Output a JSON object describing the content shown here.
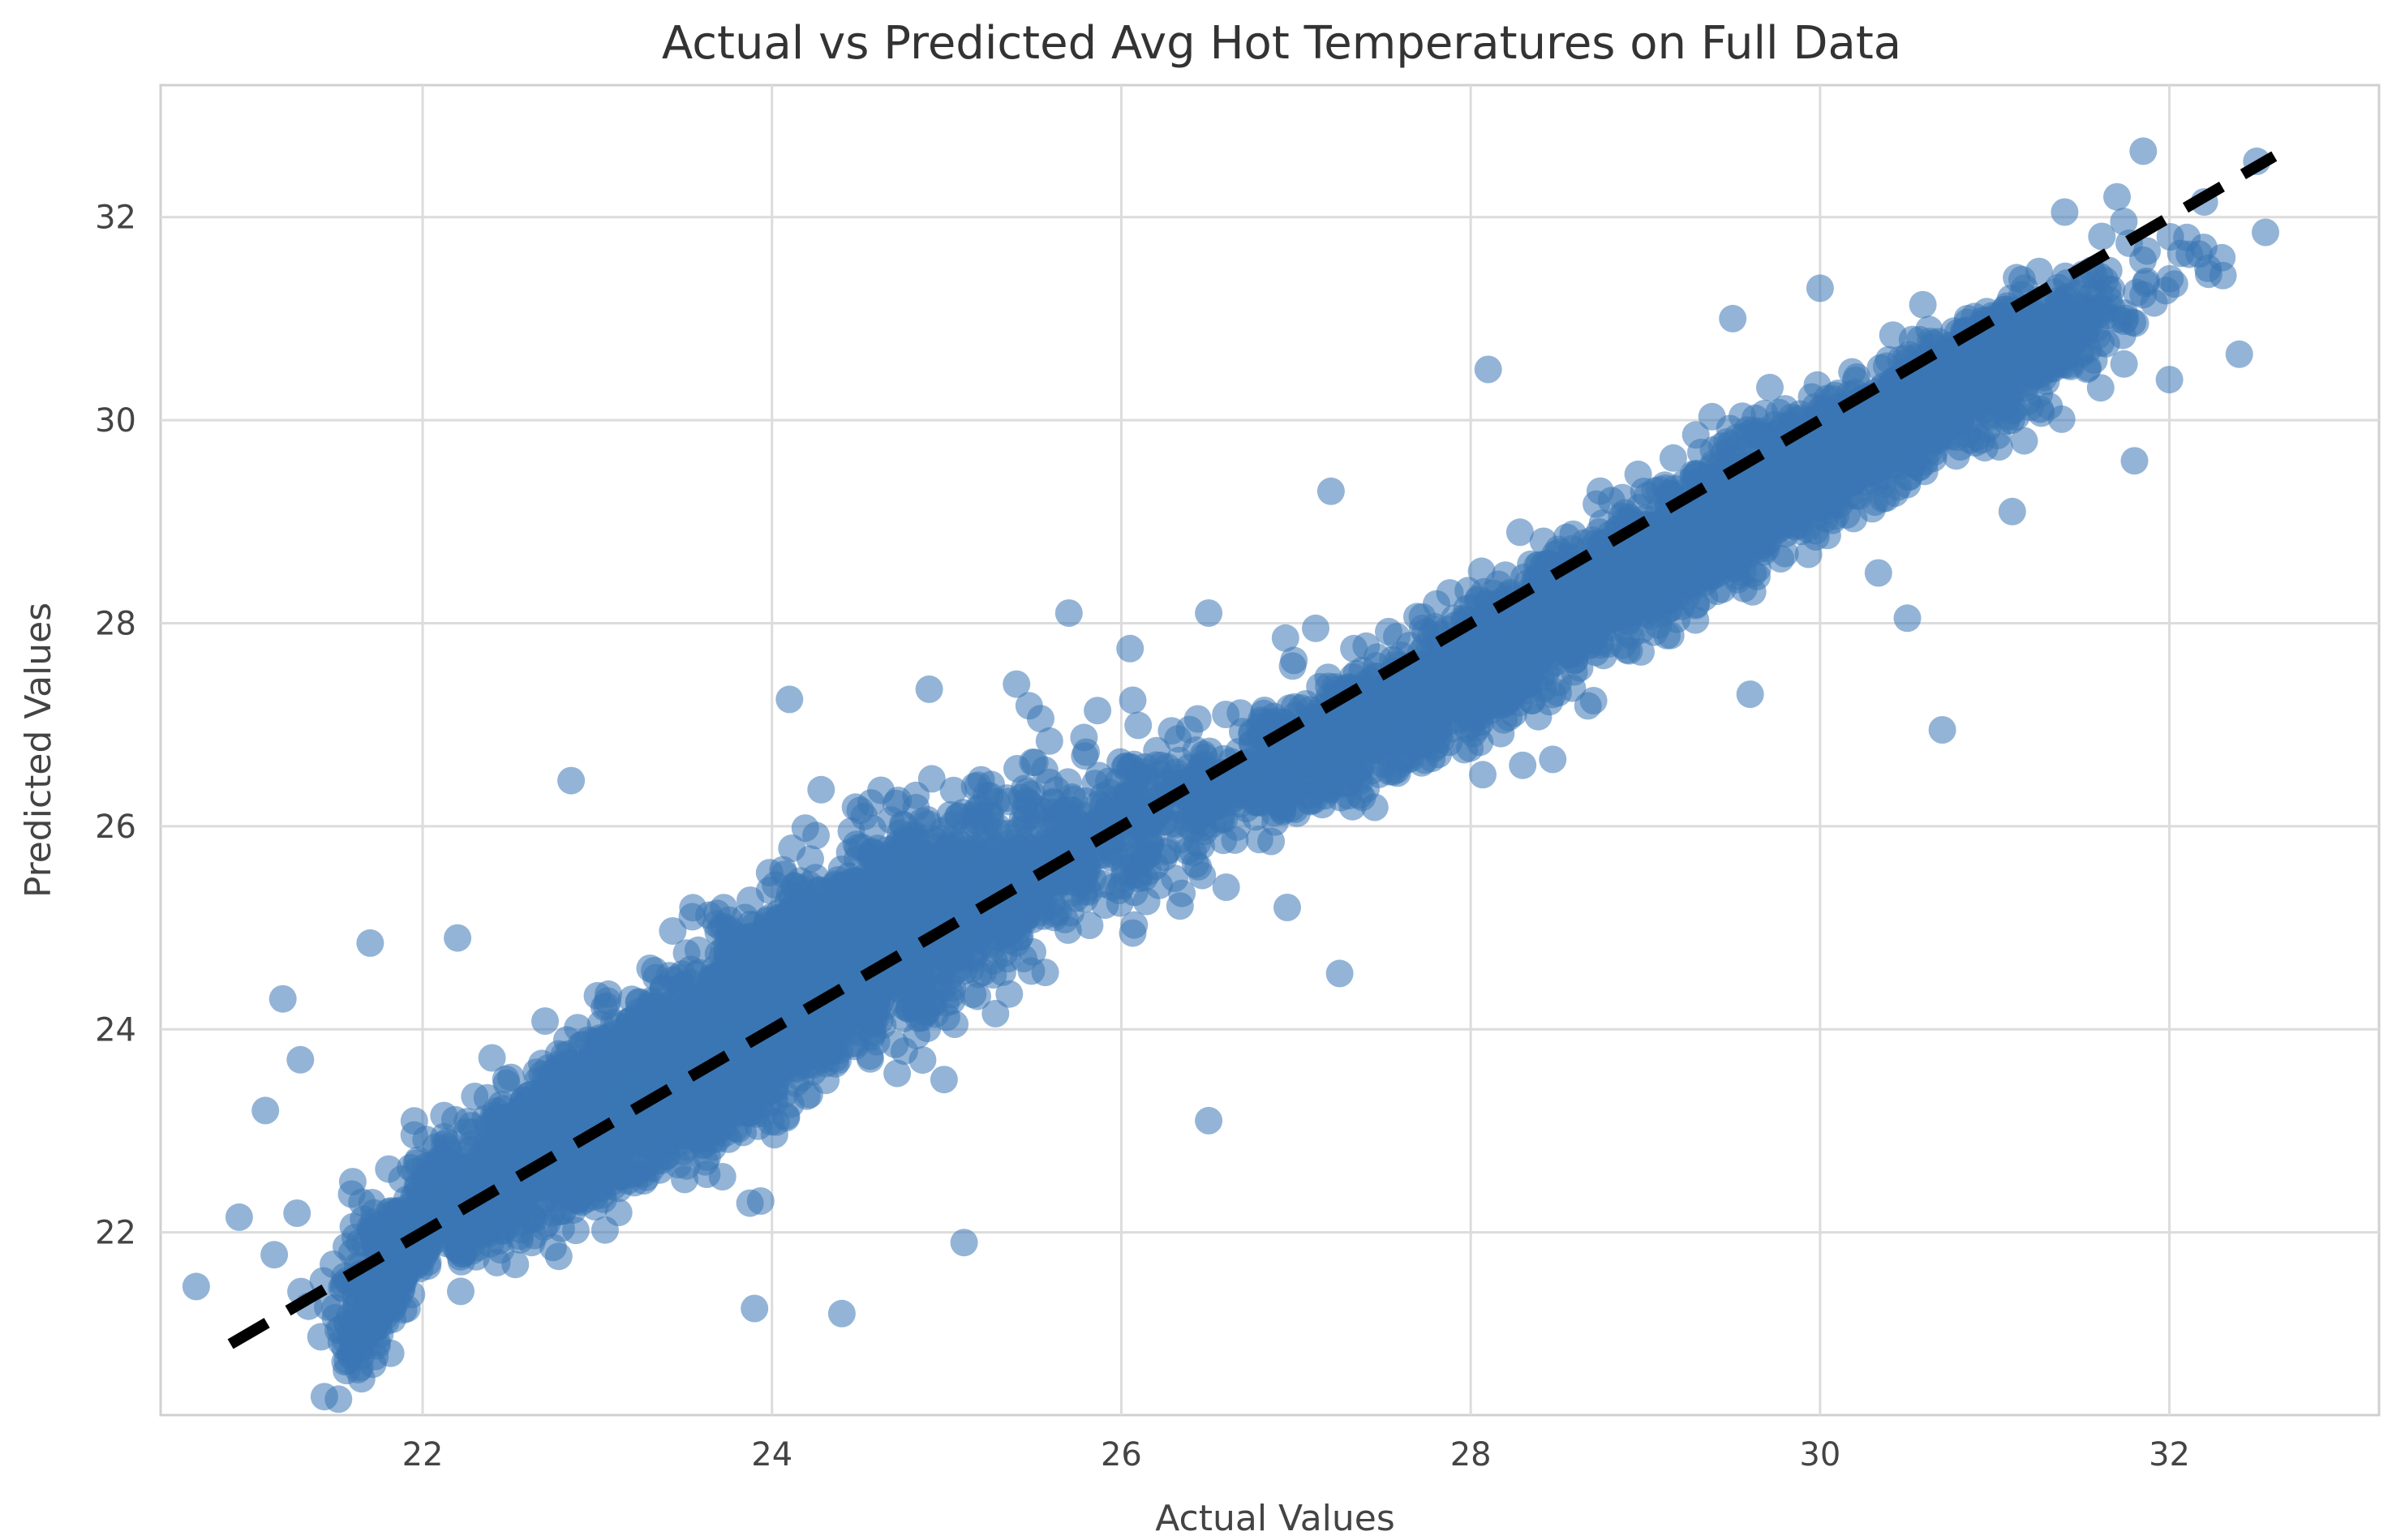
{
  "chart_data": {
    "type": "scatter",
    "title": "Actual vs Predicted Avg Hot Temperatures on Full Data",
    "xlabel": "Actual Values",
    "ylabel": "Predicted Values",
    "xlim": [
      20.5,
      33.2
    ],
    "ylim": [
      20.2,
      33.3
    ],
    "x_ticks": [
      22,
      24,
      26,
      28,
      30,
      32
    ],
    "y_ticks": [
      22,
      24,
      26,
      28,
      30,
      32
    ],
    "grid": true,
    "marker_color": "#3a77b4",
    "marker_alpha": 0.55,
    "reference_line": {
      "style": "dashed",
      "color": "#000000",
      "x": [
        20.9,
        32.6
      ],
      "y": [
        20.9,
        32.6
      ]
    },
    "series": [
      {
        "name": "predictions",
        "clusters": [
          {
            "cx": 22.9,
            "cy": 23.0,
            "sx": 0.55,
            "sy": 0.7,
            "n": 1500
          },
          {
            "cx": 24.1,
            "cy": 24.4,
            "sx": 0.6,
            "sy": 0.85,
            "n": 2200
          },
          {
            "cx": 21.8,
            "cy": 21.6,
            "sx": 0.15,
            "sy": 0.55,
            "n": 260
          },
          {
            "cx": 25.2,
            "cy": 25.2,
            "sx": 0.55,
            "sy": 0.75,
            "n": 500
          },
          {
            "cx": 26.5,
            "cy": 26.3,
            "sx": 0.55,
            "sy": 0.6,
            "n": 320
          },
          {
            "cx": 27.7,
            "cy": 27.2,
            "sx": 0.55,
            "sy": 0.55,
            "n": 700
          },
          {
            "cx": 28.8,
            "cy": 28.4,
            "sx": 0.55,
            "sy": 0.55,
            "n": 900
          },
          {
            "cx": 30.0,
            "cy": 29.6,
            "sx": 0.55,
            "sy": 0.55,
            "n": 1000
          },
          {
            "cx": 31.0,
            "cy": 30.6,
            "sx": 0.45,
            "sy": 0.5,
            "n": 500
          }
        ],
        "outliers": [
          {
            "x": 20.95,
            "y": 22.15
          },
          {
            "x": 21.1,
            "y": 23.2
          },
          {
            "x": 21.2,
            "y": 24.3
          },
          {
            "x": 21.7,
            "y": 24.85
          },
          {
            "x": 22.2,
            "y": 24.9
          },
          {
            "x": 22.85,
            "y": 26.45
          },
          {
            "x": 24.1,
            "y": 27.25
          },
          {
            "x": 25.7,
            "y": 28.1
          },
          {
            "x": 26.5,
            "y": 23.1
          },
          {
            "x": 27.25,
            "y": 24.55
          },
          {
            "x": 23.9,
            "y": 21.25
          },
          {
            "x": 24.4,
            "y": 21.2
          },
          {
            "x": 25.1,
            "y": 21.9
          },
          {
            "x": 30.7,
            "y": 26.95
          },
          {
            "x": 30.5,
            "y": 28.05
          },
          {
            "x": 31.85,
            "y": 32.65
          },
          {
            "x": 32.5,
            "y": 32.55
          },
          {
            "x": 32.4,
            "y": 30.65
          },
          {
            "x": 32.0,
            "y": 30.4
          },
          {
            "x": 31.8,
            "y": 29.6
          },
          {
            "x": 28.1,
            "y": 30.5
          },
          {
            "x": 27.2,
            "y": 29.3
          },
          {
            "x": 26.5,
            "y": 28.1
          },
          {
            "x": 30.0,
            "y": 31.3
          },
          {
            "x": 31.4,
            "y": 32.05
          },
          {
            "x": 31.7,
            "y": 32.2
          },
          {
            "x": 32.3,
            "y": 31.6
          },
          {
            "x": 29.5,
            "y": 31.0
          },
          {
            "x": 31.1,
            "y": 29.1
          },
          {
            "x": 26.95,
            "y": 25.2
          },
          {
            "x": 26.05,
            "y": 27.75
          },
          {
            "x": 25.4,
            "y": 27.4
          },
          {
            "x": 24.9,
            "y": 27.35
          },
          {
            "x": 32.55,
            "y": 31.85
          },
          {
            "x": 32.1,
            "y": 31.8
          },
          {
            "x": 32.2,
            "y": 32.15
          },
          {
            "x": 21.6,
            "y": 22.5
          },
          {
            "x": 21.3,
            "y": 23.7
          },
          {
            "x": 26.6,
            "y": 25.4
          },
          {
            "x": 28.9,
            "y": 27.9
          },
          {
            "x": 29.6,
            "y": 27.3
          }
        ]
      }
    ]
  }
}
